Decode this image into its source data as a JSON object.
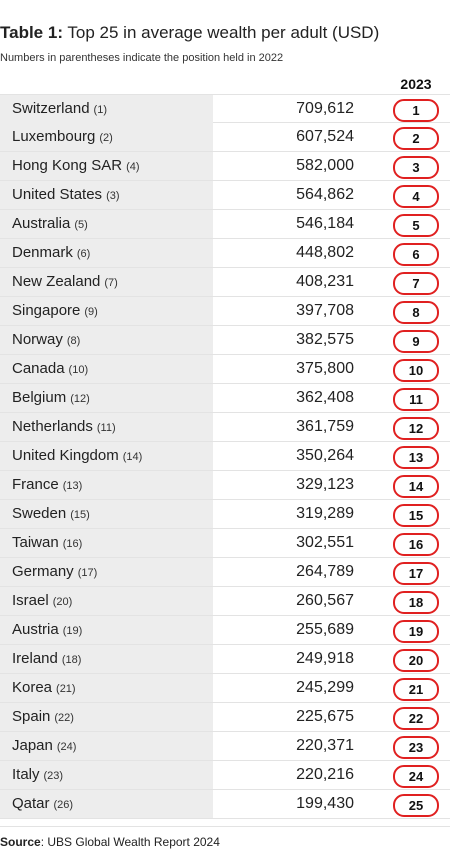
{
  "chart_data": {
    "type": "table",
    "title_prefix": "Table 1:",
    "title": "Top 25 in average wealth per adult (USD)",
    "subtitle": "Numbers in parentheses indicate the position held in 2022",
    "column_header": "2023",
    "rows": [
      {
        "country": "Switzerland",
        "prev": "(1)",
        "value": "709,612",
        "rank": "1"
      },
      {
        "country": "Luxembourg",
        "prev": "(2)",
        "value": "607,524",
        "rank": "2"
      },
      {
        "country": "Hong Kong SAR",
        "prev": "(4)",
        "value": "582,000",
        "rank": "3"
      },
      {
        "country": "United States",
        "prev": "(3)",
        "value": "564,862",
        "rank": "4"
      },
      {
        "country": "Australia",
        "prev": "(5)",
        "value": "546,184",
        "rank": "5"
      },
      {
        "country": "Denmark",
        "prev": "(6)",
        "value": "448,802",
        "rank": "6"
      },
      {
        "country": "New Zealand",
        "prev": "(7)",
        "value": "408,231",
        "rank": "7"
      },
      {
        "country": "Singapore",
        "prev": "(9)",
        "value": "397,708",
        "rank": "8"
      },
      {
        "country": "Norway",
        "prev": "(8)",
        "value": "382,575",
        "rank": "9"
      },
      {
        "country": "Canada",
        "prev": "(10)",
        "value": "375,800",
        "rank": "10"
      },
      {
        "country": "Belgium",
        "prev": "(12)",
        "value": "362,408",
        "rank": "11"
      },
      {
        "country": "Netherlands",
        "prev": "(11)",
        "value": "361,759",
        "rank": "12"
      },
      {
        "country": "United Kingdom",
        "prev": "(14)",
        "value": "350,264",
        "rank": "13"
      },
      {
        "country": "France",
        "prev": "(13)",
        "value": "329,123",
        "rank": "14"
      },
      {
        "country": "Sweden",
        "prev": "(15)",
        "value": "319,289",
        "rank": "15"
      },
      {
        "country": "Taiwan",
        "prev": "(16)",
        "value": "302,551",
        "rank": "16"
      },
      {
        "country": "Germany",
        "prev": "(17)",
        "value": "264,789",
        "rank": "17"
      },
      {
        "country": "Israel",
        "prev": "(20)",
        "value": "260,567",
        "rank": "18"
      },
      {
        "country": "Austria",
        "prev": "(19)",
        "value": "255,689",
        "rank": "19"
      },
      {
        "country": "Ireland",
        "prev": "(18)",
        "value": "249,918",
        "rank": "20"
      },
      {
        "country": "Korea",
        "prev": "(21)",
        "value": "245,299",
        "rank": "21"
      },
      {
        "country": "Spain",
        "prev": "(22)",
        "value": "225,675",
        "rank": "22"
      },
      {
        "country": "Japan",
        "prev": "(24)",
        "value": "220,371",
        "rank": "23"
      },
      {
        "country": "Italy",
        "prev": "(23)",
        "value": "220,216",
        "rank": "24"
      },
      {
        "country": "Qatar",
        "prev": "(26)",
        "value": "199,430",
        "rank": "25"
      }
    ],
    "source_label": "Source",
    "source_text": ": UBS Global Wealth Report 2024"
  },
  "colors": {
    "rank_border": "#e02020",
    "country_bg": "#ededed"
  }
}
